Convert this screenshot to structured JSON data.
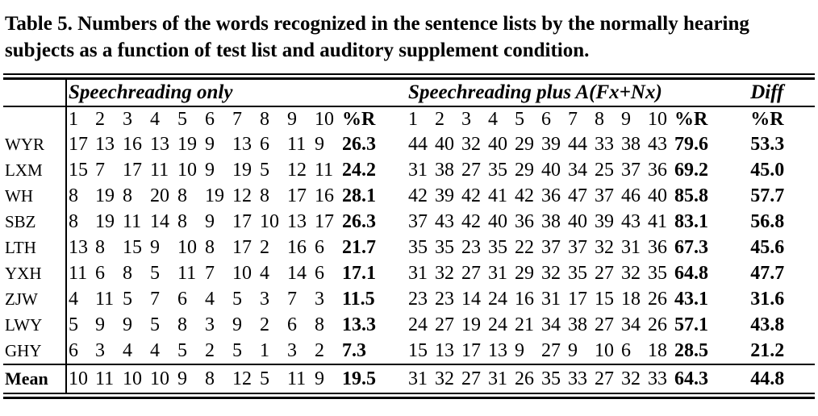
{
  "caption": "Table 5. Numbers of the words recognized in the sentence lists by the normally hearing  subjects as a function of test list and auditory supplement condition.",
  "table": {
    "group1_header": "Speechreading only",
    "group2_header": "Speechreading plus A(Fx+Nx)",
    "diff_header": "Diff",
    "pr_label": "%R",
    "list_numbers": [
      "1",
      "2",
      "3",
      "4",
      "5",
      "6",
      "7",
      "8",
      "9",
      "10"
    ],
    "rows": [
      {
        "label": "WYR",
        "g1": [
          17,
          13,
          16,
          13,
          19,
          9,
          13,
          6,
          11,
          9
        ],
        "g1_pr": "26.3",
        "g2": [
          44,
          40,
          32,
          40,
          29,
          39,
          44,
          33,
          38,
          43
        ],
        "g2_pr": "79.6",
        "diff_pr": "53.3"
      },
      {
        "label": "LXM",
        "g1": [
          15,
          7,
          17,
          11,
          10,
          9,
          19,
          5,
          12,
          11
        ],
        "g1_pr": "24.2",
        "g2": [
          31,
          38,
          27,
          35,
          29,
          40,
          34,
          25,
          37,
          36
        ],
        "g2_pr": "69.2",
        "diff_pr": "45.0"
      },
      {
        "label": "WH",
        "g1": [
          8,
          19,
          8,
          20,
          8,
          19,
          12,
          8,
          17,
          16
        ],
        "g1_pr": "28.1",
        "g2": [
          42,
          39,
          42,
          41,
          42,
          36,
          47,
          37,
          46,
          40
        ],
        "g2_pr": "85.8",
        "diff_pr": "57.7"
      },
      {
        "label": "SBZ",
        "g1": [
          8,
          19,
          11,
          14,
          8,
          9,
          17,
          10,
          13,
          17
        ],
        "g1_pr": "26.3",
        "g2": [
          37,
          43,
          42,
          40,
          36,
          38,
          40,
          39,
          43,
          41
        ],
        "g2_pr": "83.1",
        "diff_pr": "56.8"
      },
      {
        "label": "LTH",
        "g1": [
          13,
          8,
          15,
          9,
          10,
          8,
          17,
          2,
          16,
          6
        ],
        "g1_pr": "21.7",
        "g2": [
          35,
          35,
          23,
          35,
          22,
          37,
          37,
          32,
          31,
          36
        ],
        "g2_pr": "67.3",
        "diff_pr": "45.6"
      },
      {
        "label": "YXH",
        "g1": [
          11,
          6,
          8,
          5,
          11,
          7,
          10,
          4,
          14,
          6
        ],
        "g1_pr": "17.1",
        "g2": [
          31,
          32,
          27,
          31,
          29,
          32,
          35,
          27,
          32,
          35
        ],
        "g2_pr": "64.8",
        "diff_pr": "47.7"
      },
      {
        "label": "ZJW",
        "g1": [
          4,
          11,
          5,
          7,
          6,
          4,
          5,
          3,
          7,
          3
        ],
        "g1_pr": "11.5",
        "g2": [
          23,
          23,
          14,
          24,
          16,
          31,
          17,
          15,
          18,
          26
        ],
        "g2_pr": "43.1",
        "diff_pr": "31.6"
      },
      {
        "label": "LWY",
        "g1": [
          5,
          9,
          9,
          5,
          8,
          3,
          9,
          2,
          6,
          8
        ],
        "g1_pr": "13.3",
        "g2": [
          24,
          27,
          19,
          24,
          21,
          34,
          38,
          27,
          34,
          26
        ],
        "g2_pr": "57.1",
        "diff_pr": "43.8"
      },
      {
        "label": "GHY",
        "g1": [
          6,
          3,
          4,
          4,
          5,
          2,
          5,
          1,
          3,
          2
        ],
        "g1_pr": "7.3",
        "g2": [
          15,
          13,
          17,
          13,
          9,
          27,
          9,
          10,
          6,
          18
        ],
        "g2_pr": "28.5",
        "diff_pr": "21.2"
      },
      {
        "label": "Mean",
        "g1": [
          10,
          11,
          10,
          10,
          9,
          8,
          12,
          5,
          11,
          9
        ],
        "g1_pr": "19.5",
        "g2": [
          31,
          32,
          27,
          31,
          26,
          35,
          33,
          27,
          32,
          33
        ],
        "g2_pr": "64.3",
        "diff_pr": "44.8"
      }
    ]
  }
}
